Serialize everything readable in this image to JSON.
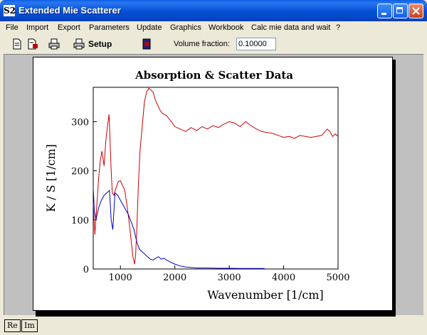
{
  "window": {
    "title": "Extended Mie Scatterer",
    "icon_text": "S2"
  },
  "menu": [
    "File",
    "Import",
    "Export",
    "Parameters",
    "Update",
    "Graphics",
    "Workbook",
    "Calc mie data and wait",
    "?"
  ],
  "toolbar": {
    "icons": [
      "new-document-icon",
      "export-document-icon",
      "print-icon",
      "print-setup-icon",
      "stop-icon"
    ],
    "setup_label": "Setup",
    "volume_fraction_label": "Volume fraction:",
    "volume_fraction_value": "0.10000"
  },
  "status_buttons": [
    "Re",
    "Im"
  ],
  "chart_data": {
    "type": "line",
    "title": "Absorption & Scatter Data",
    "xlabel": "Wavenumber [1/cm]",
    "ylabel": "K / S [1/cm]",
    "xlim": [
      500,
      5000
    ],
    "ylim": [
      0,
      370
    ],
    "x_ticks": [
      1000,
      2000,
      3000,
      4000,
      5000
    ],
    "y_ticks": [
      0,
      100,
      200,
      300
    ],
    "grid": false,
    "series": [
      {
        "color": "#CC0000",
        "x": [
          500,
          530,
          560,
          600,
          630,
          660,
          700,
          730,
          760,
          790,
          810,
          830,
          850,
          880,
          920,
          960,
          1000,
          1040,
          1080,
          1120,
          1160,
          1200,
          1230,
          1260,
          1280,
          1300,
          1330,
          1360,
          1400,
          1440,
          1480,
          1520,
          1560,
          1600,
          1640,
          1680,
          1720,
          1760,
          1800,
          1850,
          1900,
          1950,
          2000,
          2100,
          2200,
          2300,
          2400,
          2500,
          2600,
          2700,
          2800,
          2900,
          3000,
          3100,
          3200,
          3300,
          3400,
          3500,
          3600,
          3700,
          3800,
          3900,
          4000,
          4100,
          4200,
          4300,
          4400,
          4500,
          4600,
          4700,
          4800,
          4850,
          4900,
          4950,
          5000
        ],
        "y": [
          135,
          70,
          120,
          185,
          220,
          240,
          210,
          260,
          290,
          315,
          260,
          200,
          155,
          150,
          165,
          178,
          180,
          170,
          160,
          130,
          95,
          55,
          25,
          10,
          30,
          80,
          170,
          240,
          290,
          340,
          360,
          368,
          365,
          360,
          345,
          335,
          325,
          318,
          315,
          312,
          305,
          298,
          290,
          285,
          280,
          288,
          282,
          290,
          285,
          292,
          288,
          295,
          300,
          297,
          290,
          300,
          292,
          285,
          280,
          278,
          276,
          272,
          268,
          270,
          266,
          272,
          270,
          268,
          270,
          272,
          285,
          280,
          270,
          275,
          270
        ]
      },
      {
        "color": "#0000CC",
        "x": [
          500,
          520,
          550,
          600,
          650,
          700,
          750,
          800,
          830,
          860,
          900,
          950,
          1000,
          1050,
          1100,
          1150,
          1200,
          1250,
          1300,
          1350,
          1400,
          1450,
          1500,
          1550,
          1600,
          1650,
          1700,
          1750,
          1800,
          1850,
          1900,
          2000,
          2100,
          2200,
          2300,
          2400,
          2600,
          2800,
          3000,
          3200,
          3400,
          3600,
          3650
        ],
        "y": [
          165,
          120,
          100,
          125,
          140,
          150,
          155,
          160,
          100,
          80,
          155,
          150,
          140,
          130,
          120,
          110,
          95,
          80,
          55,
          40,
          35,
          30,
          25,
          20,
          18,
          22,
          25,
          20,
          22,
          18,
          15,
          10,
          6,
          4,
          3,
          2,
          2,
          1.5,
          1.5,
          1,
          1,
          1,
          1
        ]
      }
    ]
  }
}
